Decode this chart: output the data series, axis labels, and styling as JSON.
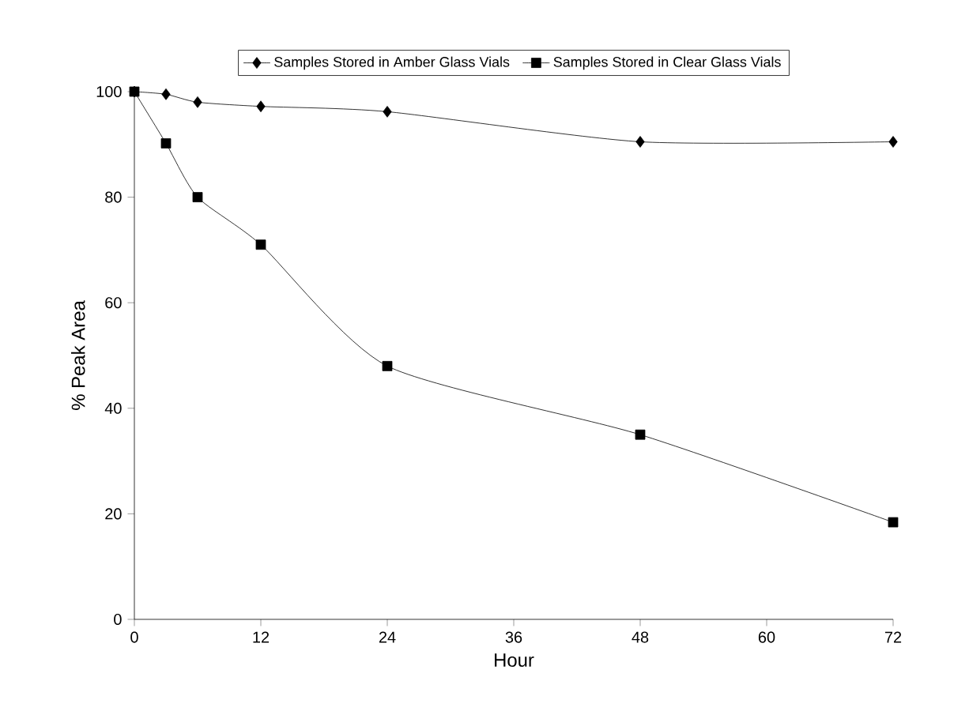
{
  "chart_data": {
    "type": "line",
    "xlabel": "Hour",
    "ylabel": "% Peak Area",
    "x": [
      0,
      3,
      6,
      12,
      24,
      48,
      72
    ],
    "series": [
      {
        "name": "Samples Stored in Amber Glass Vials",
        "color": "#000000",
        "marker": "diamond",
        "values": [
          100,
          99.5,
          98,
          97.2,
          96.2,
          90.5,
          90.5
        ]
      },
      {
        "name": "Samples Stored in Clear Glass Vials",
        "color": "#000000",
        "marker": "square",
        "values": [
          100,
          90.2,
          80,
          71,
          48,
          35,
          18.4
        ]
      }
    ],
    "xlim": [
      0,
      72
    ],
    "xticks": [
      0,
      12,
      24,
      36,
      48,
      60,
      72
    ],
    "ylim": [
      0,
      100
    ],
    "yticks": [
      0,
      20,
      40,
      60,
      80,
      100
    ],
    "grid": false,
    "legend": "top",
    "line_style": "solid"
  }
}
